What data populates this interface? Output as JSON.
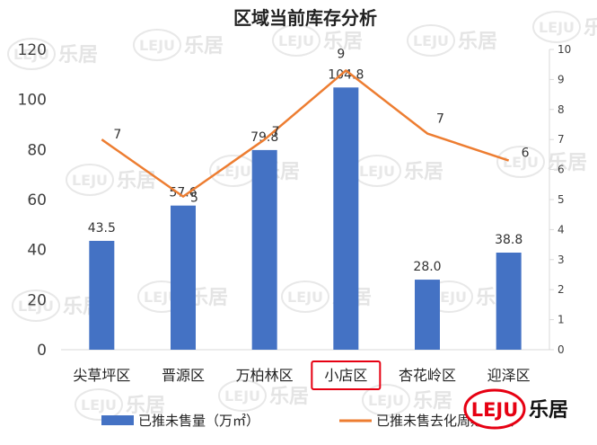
{
  "chart_data": {
    "type": "bar",
    "title": "区域当前库存分析",
    "categories": [
      "尖草坪区",
      "晋源区",
      "万柏林区",
      "小店区",
      "杏花岭区",
      "迎泽区"
    ],
    "highlighted_category": "小店区",
    "series": [
      {
        "name": "已推未售量（万㎡）",
        "type": "bar",
        "axis": "left",
        "color": "#4472C4",
        "values": [
          43.5,
          57.6,
          79.8,
          104.8,
          28.0,
          38.8
        ],
        "labels": [
          "43.5",
          "57.6",
          "79.8",
          "104.8",
          "28.0",
          "38.8"
        ]
      },
      {
        "name": "已推未售去化周期（月）",
        "type": "line",
        "axis": "right",
        "color": "#ED7D31",
        "values": [
          7,
          5.1,
          7,
          9.3,
          7.2,
          6.3
        ],
        "labels": [
          "7",
          "5",
          "7",
          "9",
          "7",
          "6"
        ]
      }
    ],
    "yleft": {
      "ylim": [
        0,
        120
      ],
      "ticks": [
        "0",
        "20",
        "40",
        "60",
        "80",
        "100",
        "120"
      ]
    },
    "yright": {
      "ylim": [
        0,
        10
      ],
      "ticks": [
        "0",
        "1",
        "2",
        "3",
        "4",
        "5",
        "6",
        "7",
        "8",
        "9",
        "10"
      ]
    },
    "grid": false,
    "legend": "bottom"
  },
  "watermark": {
    "text": "乐居",
    "badge": "LEJU"
  },
  "logo": {
    "badge": "LEJU",
    "text": "乐居",
    "color": "#E60012"
  }
}
